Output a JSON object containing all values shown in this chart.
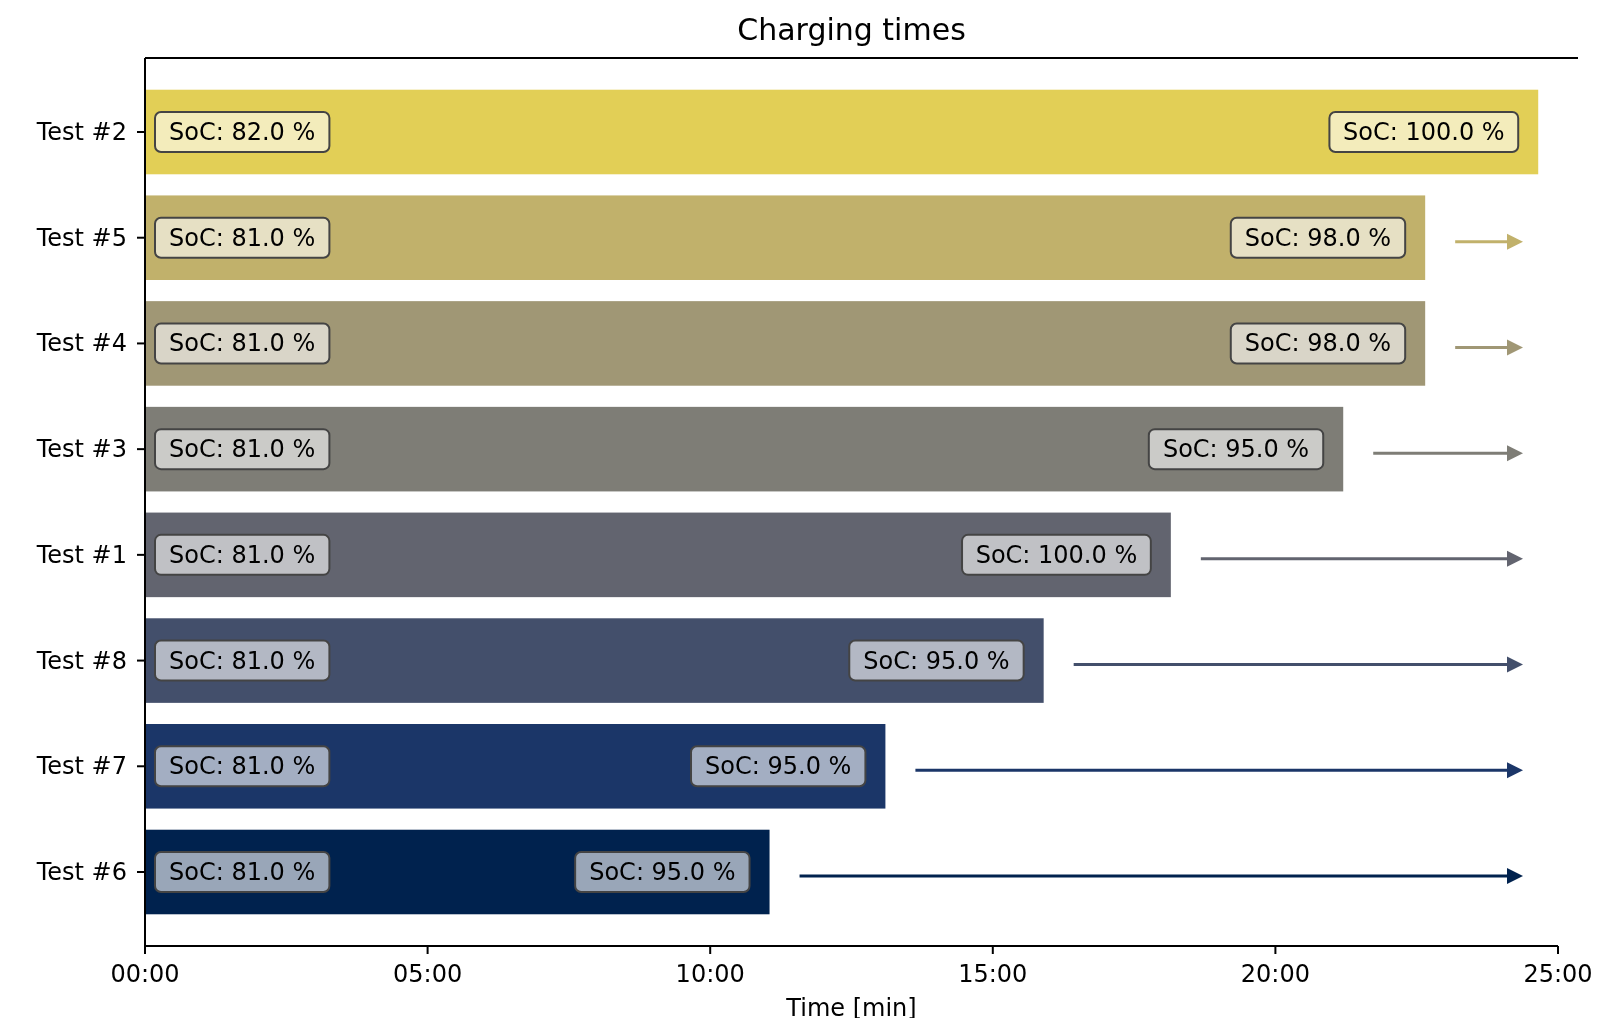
{
  "chart_data": {
    "type": "bar",
    "orientation": "horizontal",
    "title": "Charging times",
    "xlabel": "Time [min]",
    "categories": [
      "Test #2",
      "Test #5",
      "Test #4",
      "Test #3",
      "Test #1",
      "Test #8",
      "Test #7",
      "Test #6"
    ],
    "values": [
      24.65,
      22.65,
      22.65,
      21.2,
      18.15,
      15.9,
      13.1,
      11.05
    ],
    "colors": [
      "#e2cf56",
      "#c1b16b",
      "#a09775",
      "#7e7d76",
      "#62646f",
      "#434f6b",
      "#1b3668",
      "#00224e"
    ],
    "xlim": [
      0,
      25
    ],
    "xticks": [
      {
        "value": 0,
        "label": "00:00"
      },
      {
        "value": 5,
        "label": "05:00"
      },
      {
        "value": 10,
        "label": "10:00"
      },
      {
        "value": 15,
        "label": "15:00"
      },
      {
        "value": 20,
        "label": "20:00"
      },
      {
        "value": 25,
        "label": "25:00"
      }
    ],
    "annotations": [
      {
        "text": "SoC: 82.0 %",
        "x": 0,
        "y": "Test #2"
      },
      {
        "text": "SoC: 100.0 %",
        "x": 24.65,
        "y": "Test #2"
      },
      {
        "text": "SoC: 81.0 %",
        "x": 0,
        "y": "Test #5"
      },
      {
        "text": "SoC: 98.0 %",
        "x": 22.65,
        "y": "Test #5"
      },
      {
        "text": "SoC: 81.0 %",
        "x": 0,
        "y": "Test #4"
      },
      {
        "text": "SoC: 98.0 %",
        "x": 22.65,
        "y": "Test #4"
      },
      {
        "text": "SoC: 81.0 %",
        "x": 0,
        "y": "Test #3"
      },
      {
        "text": "SoC: 95.0 %",
        "x": 21.2,
        "y": "Test #3"
      },
      {
        "text": "SoC: 81.0 %",
        "x": 0,
        "y": "Test #1"
      },
      {
        "text": "SoC: 100.0 %",
        "x": 18.15,
        "y": "Test #1"
      },
      {
        "text": "SoC: 81.0 %",
        "x": 0,
        "y": "Test #8"
      },
      {
        "text": "SoC: 95.0 %",
        "x": 15.9,
        "y": "Test #8"
      },
      {
        "text": "SoC: 81.0 %",
        "x": 0,
        "y": "Test #7"
      },
      {
        "text": "SoC: 95.0 %",
        "x": 13.1,
        "y": "Test #7"
      },
      {
        "text": "SoC: 81.0 %",
        "x": 0,
        "y": "Test #6"
      },
      {
        "text": "SoC: 95.0 %",
        "x": 11.05,
        "y": "Test #6"
      }
    ]
  }
}
